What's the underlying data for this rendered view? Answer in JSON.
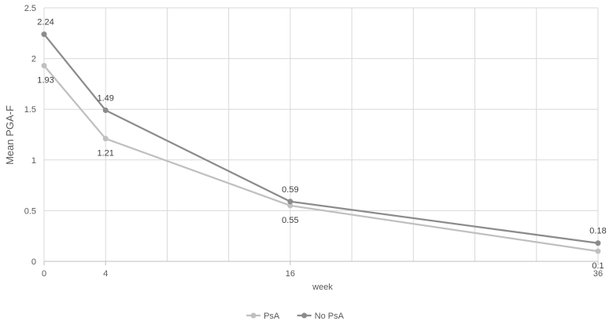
{
  "chart_data": {
    "type": "line",
    "title": "",
    "xlabel": "week",
    "ylabel": "Mean PGA-F",
    "x": [
      0,
      4,
      16,
      36
    ],
    "xlim": [
      0,
      36
    ],
    "xticks": [
      0,
      4,
      16,
      36
    ],
    "ylim": [
      0,
      2.5
    ],
    "yticks": [
      0,
      0.5,
      1,
      1.5,
      2,
      2.5
    ],
    "grid": true,
    "legend": "bottom",
    "series": [
      {
        "name": "PsA",
        "values": [
          1.93,
          1.21,
          0.55,
          0.1
        ],
        "labels": [
          "1.93",
          "1.21",
          "0.55",
          "0.1"
        ],
        "label_position": "below",
        "color": "#c0c0c0"
      },
      {
        "name": "No PsA",
        "values": [
          2.24,
          1.49,
          0.59,
          0.18
        ],
        "labels": [
          "2.24",
          "1.49",
          "0.59",
          "0.18"
        ],
        "label_position": "above",
        "color": "#8c8c8c"
      }
    ]
  }
}
